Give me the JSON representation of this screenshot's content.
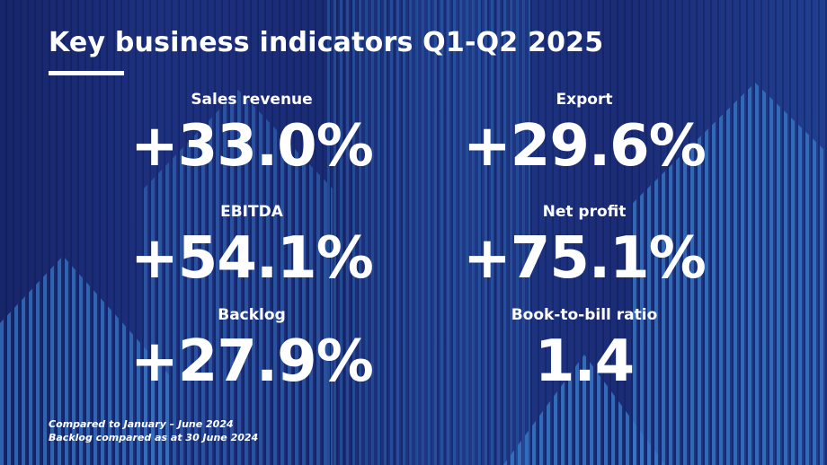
{
  "title": "Key business indicators Q1-Q2 2025",
  "kpis": [
    {
      "label": "Sales revenue",
      "value": "+33.0%"
    },
    {
      "label": "Export",
      "value": "+29.6%"
    },
    {
      "label": "EBITDA",
      "value": "+54.1%"
    },
    {
      "label": "Net profit",
      "value": "+75.1%"
    },
    {
      "label": "Backlog",
      "value": "+27.9%"
    },
    {
      "label": "Book-to-bill ratio",
      "value": "1.4"
    }
  ],
  "footnotes": [
    "Compared to January – June 2024",
    "Backlog compared as at 30 June 2024"
  ],
  "colors": {
    "background": "#1c2d72",
    "stripes_light": "#2f6ab8",
    "text": "#ffffff"
  }
}
